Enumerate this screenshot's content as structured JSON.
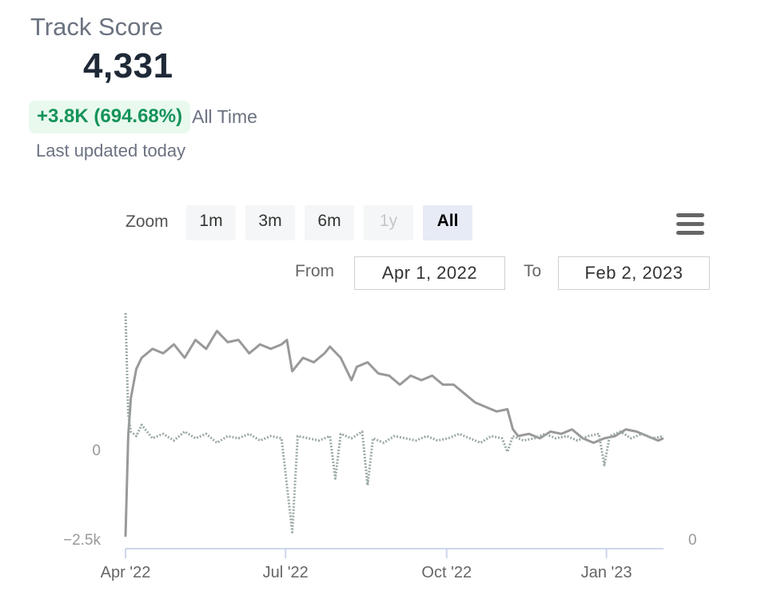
{
  "header": {
    "title": "Track Score",
    "score": "4,331",
    "change": "+3.8K (694.68%)",
    "change_period": "All Time",
    "updated": "Last updated today"
  },
  "colors": {
    "accent_gradient": [
      "#5ee0b0",
      "#1aa3e8"
    ],
    "positive": "#15935a",
    "series_score": "#999999",
    "series_change": "#9aa9a6"
  },
  "icons": {
    "score": "sound-wave-icon",
    "menu": "hamburger-menu-icon"
  },
  "zoom": {
    "label": "Zoom",
    "buttons": [
      {
        "label": "1m",
        "state": "normal"
      },
      {
        "label": "3m",
        "state": "normal"
      },
      {
        "label": "6m",
        "state": "normal"
      },
      {
        "label": "1y",
        "state": "disabled"
      },
      {
        "label": "All",
        "state": "selected"
      }
    ]
  },
  "range": {
    "from_label": "From",
    "from_value": "Apr 1, 2022",
    "to_label": "To",
    "to_value": "Feb 2, 2023"
  },
  "chart_data": {
    "type": "line",
    "x_start": "Apr 1, 2022",
    "x_end": "Feb 2, 2023",
    "x_ticks": [
      "Apr '22",
      "Jul '22",
      "Oct '22",
      "Jan '23"
    ],
    "y_left_labels": [
      "0",
      "−2.5k"
    ],
    "y_right_labels": [
      "0"
    ],
    "grid": false,
    "series": [
      {
        "style": "solid",
        "axis": "right",
        "points": [
          [
            0,
            0
          ],
          [
            0.005,
            0.45
          ],
          [
            0.01,
            0.62
          ],
          [
            0.02,
            0.75
          ],
          [
            0.03,
            0.8
          ],
          [
            0.05,
            0.84
          ],
          [
            0.07,
            0.82
          ],
          [
            0.09,
            0.86
          ],
          [
            0.11,
            0.8
          ],
          [
            0.13,
            0.88
          ],
          [
            0.15,
            0.84
          ],
          [
            0.17,
            0.92
          ],
          [
            0.19,
            0.87
          ],
          [
            0.21,
            0.88
          ],
          [
            0.23,
            0.82
          ],
          [
            0.25,
            0.86
          ],
          [
            0.27,
            0.84
          ],
          [
            0.29,
            0.86
          ],
          [
            0.3,
            0.88
          ],
          [
            0.31,
            0.74
          ],
          [
            0.33,
            0.8
          ],
          [
            0.35,
            0.78
          ],
          [
            0.37,
            0.82
          ],
          [
            0.38,
            0.85
          ],
          [
            0.4,
            0.8
          ],
          [
            0.42,
            0.7
          ],
          [
            0.43,
            0.76
          ],
          [
            0.45,
            0.78
          ],
          [
            0.47,
            0.73
          ],
          [
            0.49,
            0.72
          ],
          [
            0.51,
            0.68
          ],
          [
            0.53,
            0.72
          ],
          [
            0.55,
            0.7
          ],
          [
            0.57,
            0.72
          ],
          [
            0.59,
            0.68
          ],
          [
            0.61,
            0.68
          ],
          [
            0.63,
            0.64
          ],
          [
            0.65,
            0.6
          ],
          [
            0.67,
            0.58
          ],
          [
            0.69,
            0.56
          ],
          [
            0.71,
            0.57
          ],
          [
            0.72,
            0.48
          ],
          [
            0.73,
            0.45
          ],
          [
            0.75,
            0.46
          ],
          [
            0.77,
            0.44
          ],
          [
            0.79,
            0.47
          ],
          [
            0.81,
            0.46
          ],
          [
            0.83,
            0.48
          ],
          [
            0.85,
            0.44
          ],
          [
            0.87,
            0.42
          ],
          [
            0.89,
            0.44
          ],
          [
            0.91,
            0.45
          ],
          [
            0.93,
            0.48
          ],
          [
            0.95,
            0.47
          ],
          [
            0.97,
            0.45
          ],
          [
            0.99,
            0.43
          ],
          [
            1.0,
            0.44
          ]
        ]
      },
      {
        "style": "dotted",
        "axis": "left",
        "points": [
          [
            0,
            1.0
          ],
          [
            0.005,
            0.55
          ],
          [
            0.01,
            0.47
          ],
          [
            0.015,
            0.46
          ],
          [
            0.02,
            0.45
          ],
          [
            0.03,
            0.5
          ],
          [
            0.05,
            0.44
          ],
          [
            0.07,
            0.46
          ],
          [
            0.09,
            0.43
          ],
          [
            0.11,
            0.47
          ],
          [
            0.13,
            0.44
          ],
          [
            0.15,
            0.46
          ],
          [
            0.17,
            0.42
          ],
          [
            0.19,
            0.45
          ],
          [
            0.21,
            0.44
          ],
          [
            0.23,
            0.46
          ],
          [
            0.25,
            0.43
          ],
          [
            0.27,
            0.45
          ],
          [
            0.29,
            0.44
          ],
          [
            0.31,
            0.02
          ],
          [
            0.32,
            0.45
          ],
          [
            0.34,
            0.44
          ],
          [
            0.36,
            0.43
          ],
          [
            0.38,
            0.45
          ],
          [
            0.39,
            0.26
          ],
          [
            0.4,
            0.46
          ],
          [
            0.42,
            0.44
          ],
          [
            0.44,
            0.47
          ],
          [
            0.45,
            0.23
          ],
          [
            0.46,
            0.44
          ],
          [
            0.48,
            0.42
          ],
          [
            0.5,
            0.45
          ],
          [
            0.52,
            0.44
          ],
          [
            0.54,
            0.43
          ],
          [
            0.56,
            0.45
          ],
          [
            0.58,
            0.43
          ],
          [
            0.6,
            0.44
          ],
          [
            0.62,
            0.46
          ],
          [
            0.64,
            0.44
          ],
          [
            0.66,
            0.42
          ],
          [
            0.68,
            0.45
          ],
          [
            0.7,
            0.44
          ],
          [
            0.71,
            0.38
          ],
          [
            0.72,
            0.45
          ],
          [
            0.74,
            0.43
          ],
          [
            0.76,
            0.44
          ],
          [
            0.78,
            0.46
          ],
          [
            0.8,
            0.44
          ],
          [
            0.82,
            0.45
          ],
          [
            0.84,
            0.43
          ],
          [
            0.86,
            0.45
          ],
          [
            0.88,
            0.46
          ],
          [
            0.89,
            0.32
          ],
          [
            0.9,
            0.45
          ],
          [
            0.92,
            0.47
          ],
          [
            0.94,
            0.44
          ],
          [
            0.96,
            0.46
          ],
          [
            0.98,
            0.44
          ],
          [
            1.0,
            0.45
          ]
        ]
      }
    ]
  }
}
